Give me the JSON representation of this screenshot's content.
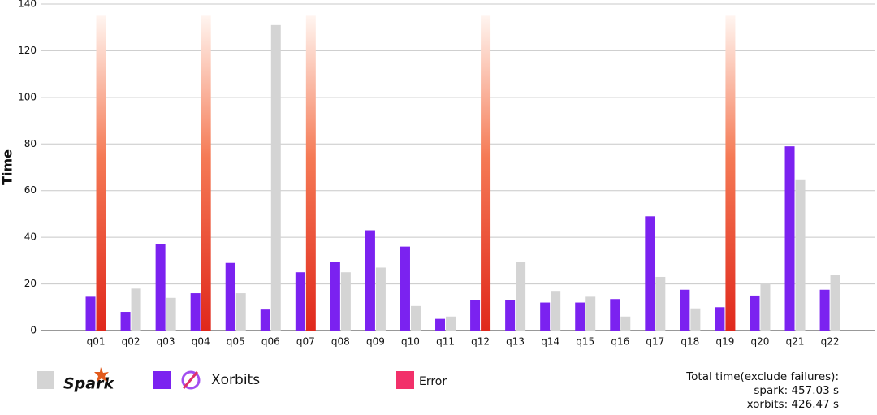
{
  "chart_data": {
    "type": "bar",
    "y_label": "Time",
    "categories": [
      "q01",
      "q02",
      "q03",
      "q04",
      "q05",
      "q06",
      "q07",
      "q08",
      "q09",
      "q10",
      "q11",
      "q12",
      "q13",
      "q14",
      "q15",
      "q16",
      "q17",
      "q18",
      "q19",
      "q20",
      "q21",
      "q22"
    ],
    "series": [
      {
        "name": "Spark",
        "color": "#d4d4d4",
        "values": [
          null,
          18,
          14,
          null,
          16,
          131,
          null,
          25,
          27,
          10.5,
          6,
          null,
          29.5,
          17,
          14.5,
          6,
          23,
          9.5,
          null,
          20.5,
          64.5,
          24
        ]
      },
      {
        "name": "Xorbits",
        "color": "#7b22f0",
        "values": [
          14.5,
          8,
          37,
          16,
          29,
          9,
          25,
          29.5,
          43,
          36,
          5,
          13,
          13,
          12,
          12,
          13.5,
          49,
          17.5,
          10,
          15,
          79,
          17.5
        ]
      },
      {
        "name": "Error",
        "color": "#f2306a",
        "values": [
          135,
          null,
          null,
          135,
          null,
          null,
          135,
          null,
          null,
          null,
          null,
          135,
          null,
          null,
          null,
          null,
          null,
          null,
          135,
          null,
          null,
          null
        ]
      }
    ],
    "ylim": [
      0,
      140
    ],
    "yticks": [
      0,
      20,
      40,
      60,
      80,
      100,
      120,
      140
    ],
    "grid": true,
    "summary": [
      "Total time(exclude failures):",
      "spark: 457.03 s",
      "xorbits: 426.47 s"
    ]
  }
}
